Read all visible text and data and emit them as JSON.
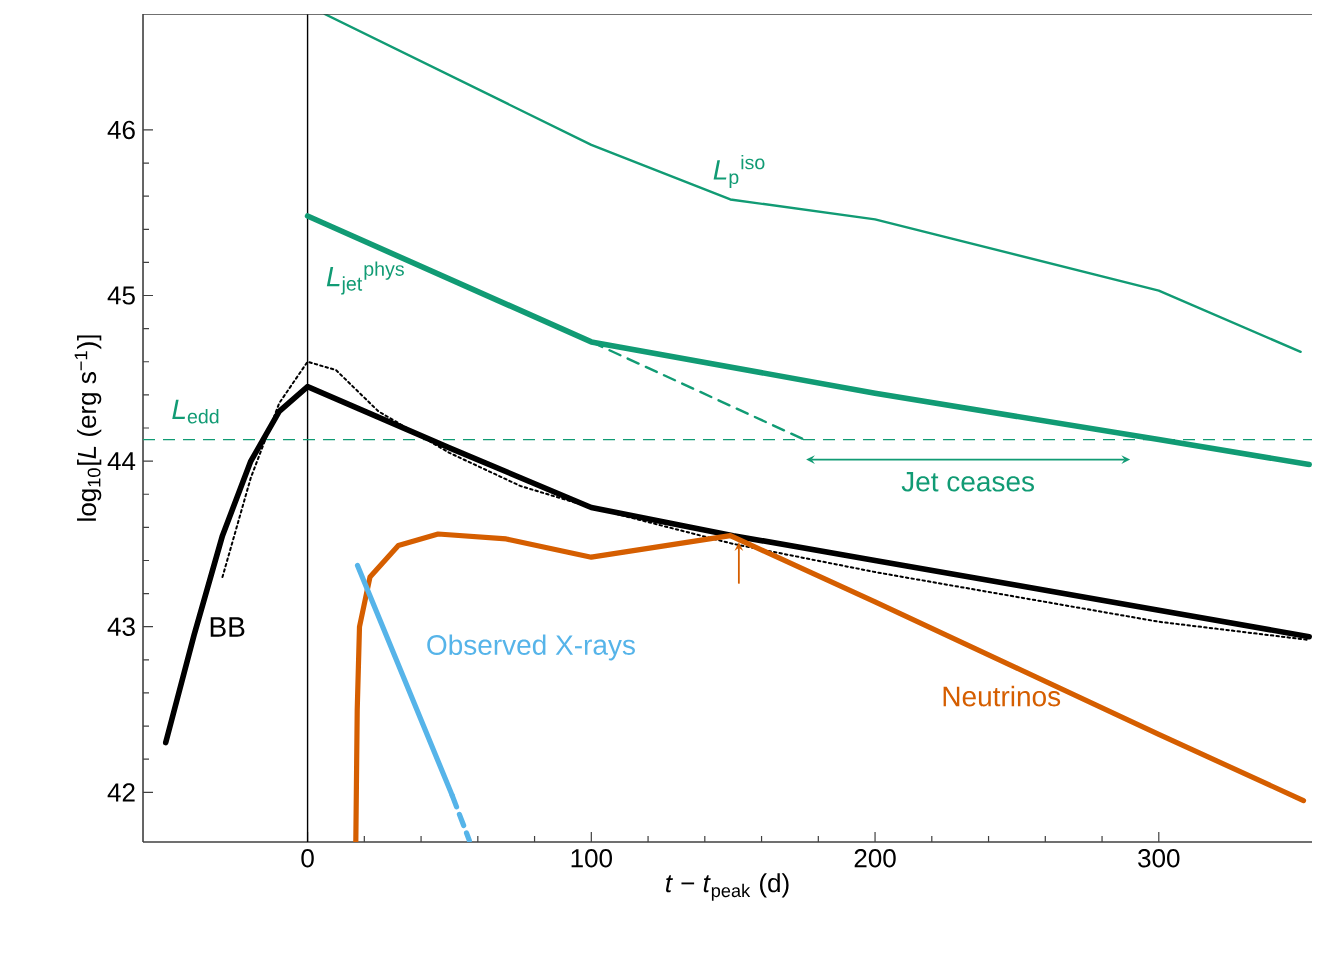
{
  "chart_data": {
    "type": "line",
    "xlabel": "*t* − *t*$_{peak}$ (d)",
    "ylabel": "log$_{10}$[*L* (erg s$^{−1}$)]",
    "xlim": [
      -58,
      354
    ],
    "ylim": [
      41.7,
      46.7
    ],
    "xticks": [
      0,
      100,
      200,
      300
    ],
    "yticks": [
      42,
      43,
      44,
      45,
      46
    ],
    "grid": false,
    "legend": false,
    "marker": "none",
    "series": [
      {
        "name": "*L*$_{p}$$^{iso}$",
        "color": "#119b74",
        "line_style": "solid",
        "x": [
          6,
          100,
          149,
          200,
          300,
          350
        ],
        "values": [
          46.7,
          45.91,
          45.58,
          45.46,
          45.03,
          44.66
        ]
      },
      {
        "name": "*L*$_{jet}$$^{phys}$",
        "color": "#119b74",
        "line_style": "solid",
        "x": [
          0,
          100,
          200,
          300,
          353
        ],
        "values": [
          45.48,
          44.72,
          44.41,
          44.13,
          43.98
        ]
      },
      {
        "color": "#119b74",
        "line_style": "dashed",
        "x": [
          100,
          175
        ],
        "values": [
          44.72,
          44.13
        ]
      },
      {
        "name": "BB",
        "color": "#000000",
        "line_style": "solid",
        "x": [
          -50,
          -40,
          -30,
          -20,
          -10,
          0,
          50,
          100,
          150,
          200,
          250,
          300,
          353
        ],
        "values": [
          42.3,
          42.95,
          43.55,
          44.0,
          44.3,
          44.45,
          44.08,
          43.72,
          43.55,
          43.4,
          43.25,
          43.1,
          42.94
        ]
      },
      {
        "color": "#000000",
        "line_style": "dotted",
        "x": [
          -30,
          -20,
          -10,
          0,
          10,
          25,
          50,
          75,
          100,
          150,
          200,
          250,
          300,
          353
        ],
        "values": [
          43.3,
          43.9,
          44.35,
          44.6,
          44.55,
          44.3,
          44.05,
          43.85,
          43.72,
          43.5,
          43.33,
          43.18,
          43.03,
          42.92
        ]
      },
      {
        "name": "Neutrinos",
        "color": "#d55e00",
        "line_style": "solid",
        "x": [
          17,
          17.5,
          18.3,
          22,
          32,
          46,
          70,
          100,
          149,
          200,
          250,
          300,
          351
        ],
        "values": [
          41.7,
          42.5,
          43.0,
          43.3,
          43.49,
          43.56,
          43.53,
          43.42,
          43.55,
          43.15,
          42.75,
          42.35,
          41.95
        ]
      },
      {
        "name": "Observed X-rays",
        "color": "#56b4e9",
        "line_style": "solid",
        "x": [
          17.6,
          51
        ],
        "values": [
          43.37,
          41.98
        ]
      },
      {
        "color": "#56b4e9",
        "line_style": "dashed",
        "x": [
          51,
          57
        ],
        "values": [
          41.98,
          41.71
        ]
      }
    ],
    "ref_lines": [
      {
        "axis": "x",
        "value": 0,
        "color": "#000000",
        "line_style": "solid"
      },
      {
        "axis": "y",
        "value": 44.13,
        "color": "#119b74",
        "line_style": "dashed",
        "label": "*L*$_{edd}$"
      }
    ],
    "annotations": [
      "Jet ceases"
    ]
  }
}
